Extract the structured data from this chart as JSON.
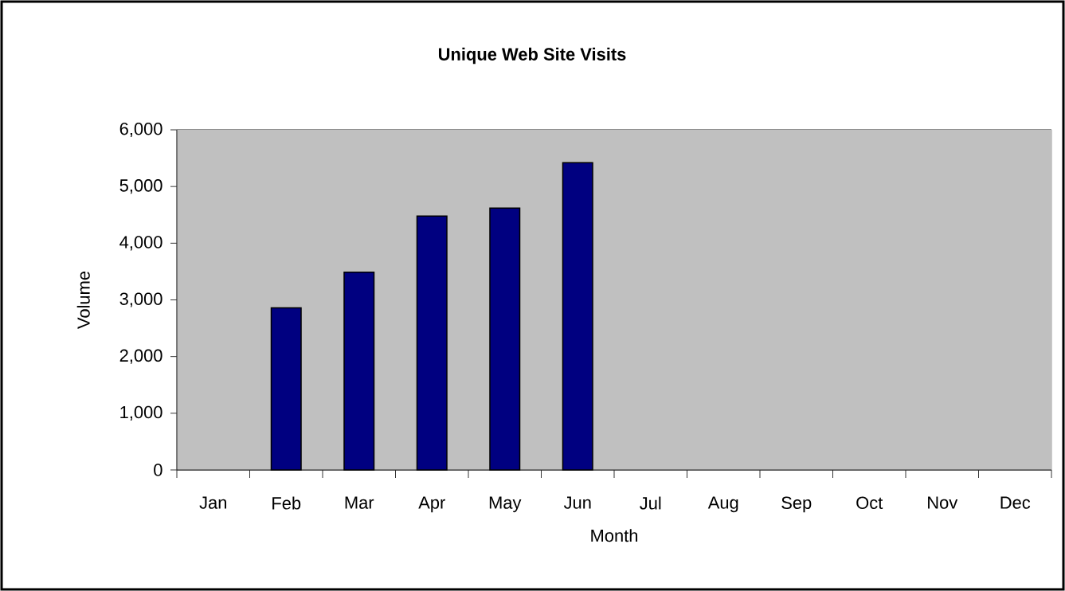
{
  "chart_data": {
    "type": "bar",
    "title": "Unique Web Site Visits",
    "xlabel": "Month",
    "ylabel": "Volume",
    "categories": [
      "Jan",
      "Feb",
      "Mar",
      "Apr",
      "May",
      "Jun",
      "Jul",
      "Aug",
      "Sep",
      "Oct",
      "Nov",
      "Dec"
    ],
    "values": [
      null,
      2860,
      3490,
      4480,
      4620,
      5420,
      null,
      null,
      null,
      null,
      null,
      null
    ],
    "color": "#000080",
    "ylim": [
      0,
      6000
    ],
    "yticks": [
      0,
      {
        "value": 1000,
        "label": "1,000"
      },
      {
        "value": 2000,
        "label": "2,000"
      },
      {
        "value": 3000,
        "label": "3,000"
      },
      {
        "value": 4000,
        "label": "4,000"
      },
      {
        "value": 5000,
        "label": "5,000"
      },
      {
        "value": 6000,
        "label": "6,000"
      }
    ],
    "grid": "y"
  }
}
